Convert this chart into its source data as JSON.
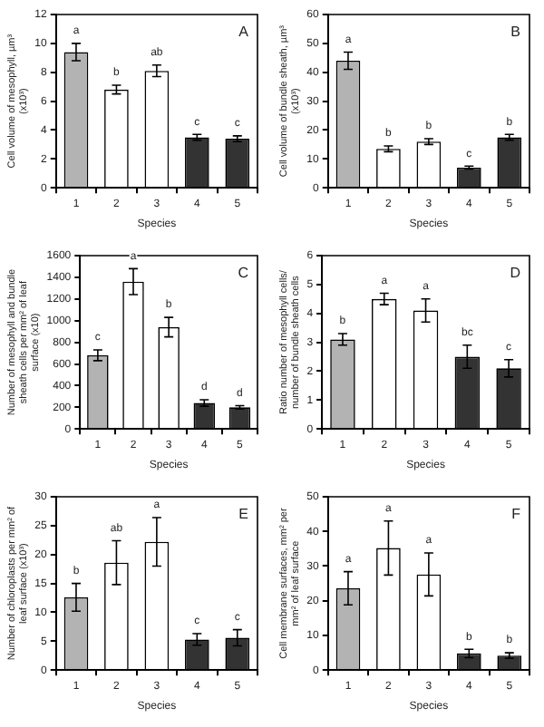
{
  "chart_data": [
    {
      "type": "bar",
      "xlabel": "Species",
      "ylabel": "Cell volume of mesophyll, µm³ (x10³)",
      "categories": [
        "1",
        "2",
        "3",
        "4",
        "5"
      ],
      "values": [
        9.4,
        6.8,
        8.1,
        3.5,
        3.4
      ],
      "errors": [
        0.6,
        0.3,
        0.4,
        0.2,
        0.2
      ],
      "colors": [
        "#b3b3b3",
        "#ffffff",
        "#ffffff",
        "#333333",
        "#333333"
      ],
      "ylim": [
        0,
        12
      ],
      "yticks": [
        0,
        2,
        4,
        6,
        8,
        10,
        12
      ],
      "annotations": [
        "A",
        {
          "text": "a",
          "x": "1",
          "y": 10
        },
        {
          "text": "b",
          "x": "2",
          "y": 7.1
        },
        {
          "text": "ab",
          "x": "3",
          "y": 8.5
        },
        {
          "text": "c",
          "x": "4",
          "y": 3.7
        },
        {
          "text": "c",
          "x": "5",
          "y": 3.6
        }
      ]
    },
    {
      "type": "bar",
      "xlabel": "Species",
      "ylabel": "Cell volume of bundle sheath, µm³ (x10³)",
      "categories": [
        "1",
        "2",
        "3",
        "4",
        "5"
      ],
      "values": [
        44,
        13.5,
        16,
        7,
        17.5
      ],
      "errors": [
        3,
        1,
        1,
        0.5,
        1
      ],
      "colors": [
        "#b3b3b3",
        "#ffffff",
        "#ffffff",
        "#333333",
        "#333333"
      ],
      "ylim": [
        0,
        60
      ],
      "yticks": [
        0,
        10,
        20,
        30,
        40,
        50,
        60
      ],
      "annotations": [
        "B",
        {
          "text": "a",
          "x": "1",
          "y": 47
        },
        {
          "text": "b",
          "x": "2",
          "y": 14.5
        },
        {
          "text": "b",
          "x": "3",
          "y": 17
        },
        {
          "text": "c",
          "x": "4",
          "y": 7.5
        },
        {
          "text": "b",
          "x": "5",
          "y": 18.5
        }
      ]
    },
    {
      "type": "bar",
      "xlabel": "Species",
      "ylabel": "Number of mesophyll and bundle sheath cells per mm² of leaf surface (x10)",
      "categories": [
        "1",
        "2",
        "3",
        "4",
        "5"
      ],
      "values": [
        680,
        1360,
        940,
        240,
        200
      ],
      "errors": [
        50,
        120,
        90,
        30,
        15
      ],
      "colors": [
        "#b3b3b3",
        "#ffffff",
        "#ffffff",
        "#333333",
        "#333333"
      ],
      "ylim": [
        0,
        1600
      ],
      "yticks": [
        0,
        200,
        400,
        600,
        800,
        1000,
        1200,
        1400,
        1600
      ],
      "annotations": [
        "C",
        {
          "text": "c",
          "x": "1",
          "y": 730
        },
        {
          "text": "a",
          "x": "2",
          "y": 1480
        },
        {
          "text": "b",
          "x": "3",
          "y": 1030
        },
        {
          "text": "d",
          "x": "4",
          "y": 270
        },
        {
          "text": "d",
          "x": "5",
          "y": 215
        }
      ]
    },
    {
      "type": "bar",
      "xlabel": "Species",
      "ylabel": "Ratio number of mesophyll cells/ number of bundle sheath cells",
      "categories": [
        "1",
        "2",
        "3",
        "4",
        "5"
      ],
      "values": [
        3.1,
        4.5,
        4.1,
        2.5,
        2.1
      ],
      "errors": [
        0.2,
        0.2,
        0.4,
        0.4,
        0.3
      ],
      "colors": [
        "#b3b3b3",
        "#ffffff",
        "#ffffff",
        "#333333",
        "#333333"
      ],
      "ylim": [
        0,
        6
      ],
      "yticks": [
        0,
        1,
        2,
        3,
        4,
        5,
        6
      ],
      "annotations": [
        "D",
        {
          "text": "b",
          "x": "1",
          "y": 3.3
        },
        {
          "text": "a",
          "x": "2",
          "y": 4.7
        },
        {
          "text": "a",
          "x": "3",
          "y": 4.5
        },
        {
          "text": "bc",
          "x": "4",
          "y": 2.9
        },
        {
          "text": "c",
          "x": "5",
          "y": 2.4
        }
      ]
    },
    {
      "type": "bar",
      "xlabel": "Species",
      "ylabel": "Number of chloroplasts per mm² of leaf surface (x10³)",
      "categories": [
        "1",
        "2",
        "3",
        "4",
        "5"
      ],
      "values": [
        12.6,
        18.6,
        22.2,
        5.3,
        5.6
      ],
      "errors": [
        2.4,
        3.8,
        4.2,
        1,
        1.4
      ],
      "colors": [
        "#b3b3b3",
        "#ffffff",
        "#ffffff",
        "#333333",
        "#333333"
      ],
      "ylim": [
        0,
        30
      ],
      "yticks": [
        0,
        5,
        10,
        15,
        20,
        25,
        30
      ],
      "annotations": [
        "E",
        {
          "text": "b",
          "x": "1",
          "y": 15
        },
        {
          "text": "ab",
          "x": "2",
          "y": 22.4
        },
        {
          "text": "a",
          "x": "3",
          "y": 26.4
        },
        {
          "text": "c",
          "x": "4",
          "y": 6.3
        },
        {
          "text": "c",
          "x": "5",
          "y": 7
        }
      ]
    },
    {
      "type": "bar",
      "xlabel": "Species",
      "ylabel": "Cell membrane surfaces, mm² per mm² of leaf surface",
      "categories": [
        "1",
        "2",
        "3",
        "4",
        "5"
      ],
      "values": [
        23.6,
        35.2,
        27.6,
        4.8,
        4.2
      ],
      "errors": [
        4.8,
        7.8,
        6.2,
        1.2,
        0.8
      ],
      "colors": [
        "#b3b3b3",
        "#ffffff",
        "#ffffff",
        "#333333",
        "#333333"
      ],
      "ylim": [
        0,
        50
      ],
      "yticks": [
        0,
        10,
        20,
        30,
        40,
        50
      ],
      "annotations": [
        "F",
        {
          "text": "a",
          "x": "1",
          "y": 28.4
        },
        {
          "text": "a",
          "x": "2",
          "y": 43
        },
        {
          "text": "a",
          "x": "3",
          "y": 33.8
        },
        {
          "text": "b",
          "x": "4",
          "y": 6
        },
        {
          "text": "b",
          "x": "5",
          "y": 5
        }
      ]
    }
  ]
}
